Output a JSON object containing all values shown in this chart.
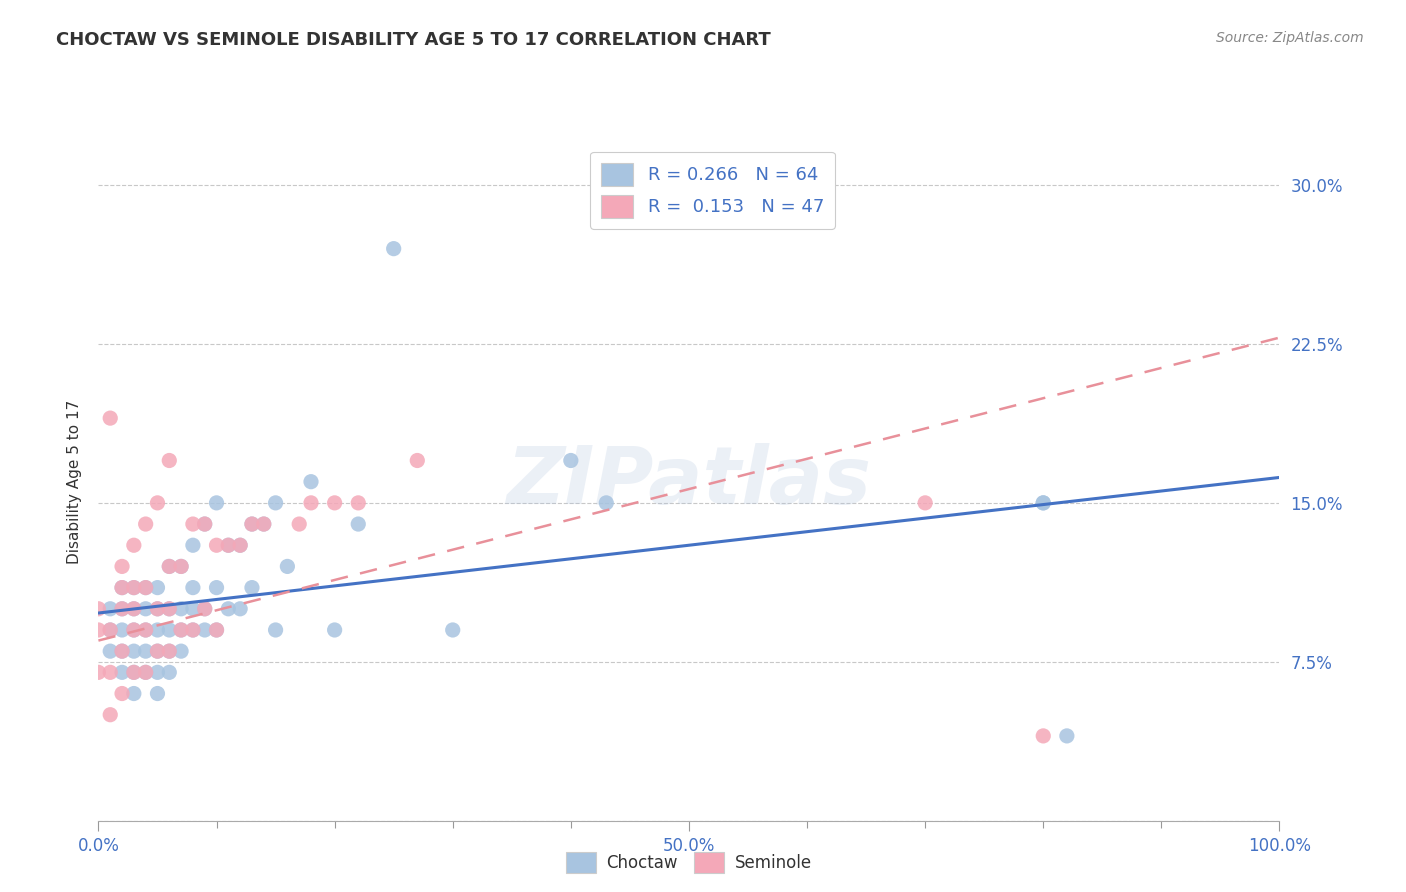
{
  "title": "CHOCTAW VS SEMINOLE DISABILITY AGE 5 TO 17 CORRELATION CHART",
  "source": "Source: ZipAtlas.com",
  "ylabel": "Disability Age 5 to 17",
  "xlim": [
    0,
    1.0
  ],
  "ylim": [
    0,
    0.32
  ],
  "y_ticks": [
    0.0,
    0.075,
    0.15,
    0.225,
    0.3
  ],
  "y_tick_labels": [
    "",
    "7.5%",
    "15.0%",
    "22.5%",
    "30.0%"
  ],
  "choctaw_R": 0.266,
  "choctaw_N": 64,
  "seminole_R": 0.153,
  "seminole_N": 47,
  "choctaw_color": "#a8c4e0",
  "seminole_color": "#f4a8b8",
  "choctaw_line_color": "#4472c4",
  "seminole_line_color": "#e8909a",
  "background_color": "#ffffff",
  "grid_color": "#c8c8c8",
  "watermark": "ZIPatlas",
  "choctaw_line_x0": 0.0,
  "choctaw_line_y0": 0.098,
  "choctaw_line_x1": 1.0,
  "choctaw_line_y1": 0.162,
  "seminole_line_x0": 0.0,
  "seminole_line_y0": 0.085,
  "seminole_line_x1": 1.0,
  "seminole_line_y1": 0.228,
  "choctaw_x": [
    0.01,
    0.01,
    0.01,
    0.02,
    0.02,
    0.02,
    0.02,
    0.02,
    0.03,
    0.03,
    0.03,
    0.03,
    0.03,
    0.03,
    0.04,
    0.04,
    0.04,
    0.04,
    0.04,
    0.05,
    0.05,
    0.05,
    0.05,
    0.05,
    0.05,
    0.06,
    0.06,
    0.06,
    0.06,
    0.06,
    0.07,
    0.07,
    0.07,
    0.07,
    0.08,
    0.08,
    0.08,
    0.08,
    0.09,
    0.09,
    0.09,
    0.1,
    0.1,
    0.1,
    0.11,
    0.11,
    0.12,
    0.12,
    0.13,
    0.13,
    0.14,
    0.15,
    0.15,
    0.16,
    0.18,
    0.2,
    0.22,
    0.25,
    0.3,
    0.4,
    0.43,
    0.8,
    0.8,
    0.82
  ],
  "choctaw_y": [
    0.08,
    0.09,
    0.1,
    0.07,
    0.08,
    0.09,
    0.1,
    0.11,
    0.06,
    0.07,
    0.08,
    0.09,
    0.1,
    0.11,
    0.07,
    0.08,
    0.09,
    0.1,
    0.11,
    0.06,
    0.07,
    0.08,
    0.09,
    0.1,
    0.11,
    0.07,
    0.08,
    0.09,
    0.1,
    0.12,
    0.08,
    0.09,
    0.1,
    0.12,
    0.09,
    0.1,
    0.11,
    0.13,
    0.09,
    0.1,
    0.14,
    0.09,
    0.11,
    0.15,
    0.1,
    0.13,
    0.1,
    0.13,
    0.11,
    0.14,
    0.14,
    0.09,
    0.15,
    0.12,
    0.16,
    0.09,
    0.14,
    0.27,
    0.09,
    0.17,
    0.15,
    0.15,
    0.15,
    0.04
  ],
  "seminole_x": [
    0.0,
    0.0,
    0.0,
    0.01,
    0.01,
    0.01,
    0.01,
    0.02,
    0.02,
    0.02,
    0.02,
    0.02,
    0.03,
    0.03,
    0.03,
    0.03,
    0.03,
    0.04,
    0.04,
    0.04,
    0.04,
    0.05,
    0.05,
    0.05,
    0.06,
    0.06,
    0.06,
    0.06,
    0.07,
    0.07,
    0.08,
    0.08,
    0.09,
    0.09,
    0.1,
    0.1,
    0.11,
    0.12,
    0.13,
    0.14,
    0.17,
    0.18,
    0.2,
    0.22,
    0.27,
    0.7,
    0.8
  ],
  "seminole_y": [
    0.07,
    0.09,
    0.1,
    0.05,
    0.07,
    0.09,
    0.19,
    0.06,
    0.08,
    0.1,
    0.11,
    0.12,
    0.07,
    0.09,
    0.1,
    0.11,
    0.13,
    0.07,
    0.09,
    0.11,
    0.14,
    0.08,
    0.1,
    0.15,
    0.08,
    0.1,
    0.12,
    0.17,
    0.09,
    0.12,
    0.09,
    0.14,
    0.1,
    0.14,
    0.09,
    0.13,
    0.13,
    0.13,
    0.14,
    0.14,
    0.14,
    0.15,
    0.15,
    0.15,
    0.17,
    0.15,
    0.04
  ]
}
